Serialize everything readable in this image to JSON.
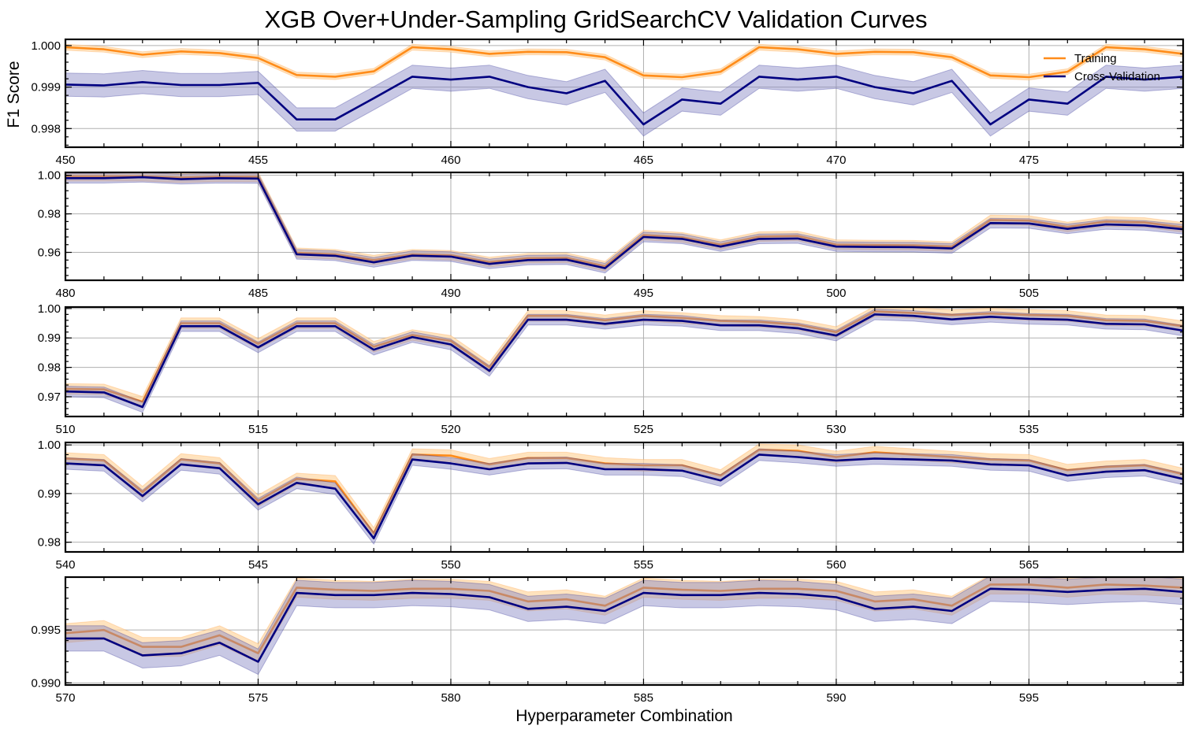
{
  "title": "XGB Over+Under-Sampling GridSearchCV Validation Curves",
  "ylabel": "F1 Score",
  "xlabel": "Hyperparameter Combination",
  "colors": {
    "training": "#ff8c1a",
    "training_band": "#ffd9a8",
    "cv": "#000080",
    "cv_band": "#8585c4",
    "grid": "#b0b0b0"
  },
  "legend": {
    "placement": "top-right",
    "entries": [
      "Training",
      "Cross-Validation"
    ]
  },
  "chart_data": [
    {
      "type": "line",
      "grid": true,
      "xlim": [
        450,
        479
      ],
      "ylim": [
        0.99755,
        1.00015
      ],
      "xticks": [
        450,
        455,
        460,
        465,
        470,
        475
      ],
      "yticks": [
        0.998,
        0.999,
        1.0
      ],
      "ytick_labels": [
        "0.998",
        "0.999",
        "1.000"
      ],
      "x": [
        450,
        451,
        452,
        453,
        454,
        455,
        456,
        457,
        458,
        459,
        460,
        461,
        462,
        463,
        464,
        465,
        466,
        467,
        468,
        469,
        470,
        471,
        472,
        473,
        474,
        475,
        476,
        477,
        478,
        479
      ],
      "series": [
        {
          "name": "Training",
          "values": [
            0.99996,
            0.99991,
            0.99978,
            0.99986,
            0.99982,
            0.9997,
            0.99929,
            0.99925,
            0.99938,
            0.99996,
            0.99991,
            0.9998,
            0.99985,
            0.99984,
            0.99972,
            0.99928,
            0.99924,
            0.99937,
            0.99996,
            0.99991,
            0.9998,
            0.99985,
            0.99984,
            0.99972,
            0.99928,
            0.99924,
            0.99937,
            0.99996,
            0.99991,
            0.9998
          ],
          "band": 7e-05
        },
        {
          "name": "Cross-Validation",
          "values": [
            0.99906,
            0.99904,
            0.99912,
            0.99905,
            0.99905,
            0.9991,
            0.99822,
            0.99822,
            0.99873,
            0.99925,
            0.99918,
            0.99925,
            0.999,
            0.99885,
            0.99915,
            0.9981,
            0.9987,
            0.9986,
            0.99925,
            0.99918,
            0.99925,
            0.999,
            0.99885,
            0.99915,
            0.9981,
            0.9987,
            0.9986,
            0.99925,
            0.99918,
            0.99925
          ],
          "band": 0.00028
        }
      ]
    },
    {
      "type": "line",
      "grid": true,
      "xlim": [
        480,
        509
      ],
      "ylim": [
        0.9455,
        1.0015
      ],
      "xticks": [
        480,
        485,
        490,
        495,
        500,
        505
      ],
      "yticks": [
        0.96,
        0.98,
        1.0
      ],
      "ytick_labels": [
        "0.96",
        "0.98",
        "1.00"
      ],
      "x": [
        480,
        481,
        482,
        483,
        484,
        485,
        486,
        487,
        488,
        489,
        490,
        491,
        492,
        493,
        494,
        495,
        496,
        497,
        498,
        499,
        500,
        501,
        502,
        503,
        504,
        505,
        506,
        507,
        508,
        509
      ],
      "series": [
        {
          "name": "Training",
          "values": [
            0.9995,
            0.9995,
            0.9995,
            0.9988,
            0.9993,
            0.9992,
            0.9598,
            0.959,
            0.956,
            0.959,
            0.9585,
            0.955,
            0.957,
            0.9572,
            0.9528,
            0.969,
            0.9678,
            0.964,
            0.9682,
            0.9685,
            0.964,
            0.9638,
            0.9637,
            0.963,
            0.9768,
            0.9765,
            0.9732,
            0.976,
            0.9755,
            0.973
          ],
          "band": 0.0025
        },
        {
          "name": "Cross-Validation",
          "values": [
            0.9985,
            0.9985,
            0.999,
            0.998,
            0.9985,
            0.9983,
            0.959,
            0.9582,
            0.9548,
            0.9583,
            0.9578,
            0.954,
            0.956,
            0.9562,
            0.9518,
            0.968,
            0.967,
            0.963,
            0.967,
            0.9672,
            0.963,
            0.9628,
            0.9627,
            0.962,
            0.9752,
            0.975,
            0.9722,
            0.9745,
            0.974,
            0.972
          ],
          "band": 0.0025
        }
      ]
    },
    {
      "type": "line",
      "grid": true,
      "xlim": [
        510,
        539
      ],
      "ylim": [
        0.9633,
        1.0005
      ],
      "xticks": [
        510,
        515,
        520,
        525,
        530,
        535
      ],
      "yticks": [
        0.97,
        0.98,
        0.99,
        1.0
      ],
      "ytick_labels": [
        "0.97",
        "0.98",
        "0.99",
        "1.00"
      ],
      "x": [
        510,
        511,
        512,
        513,
        514,
        515,
        516,
        517,
        518,
        519,
        520,
        521,
        522,
        523,
        524,
        525,
        526,
        527,
        528,
        529,
        530,
        531,
        532,
        533,
        534,
        535,
        536,
        537,
        538,
        539
      ],
      "series": [
        {
          "name": "Training",
          "values": [
            0.9727,
            0.9725,
            0.9683,
            0.995,
            0.995,
            0.988,
            0.995,
            0.995,
            0.987,
            0.991,
            0.989,
            0.98,
            0.9975,
            0.9975,
            0.996,
            0.9975,
            0.9968,
            0.9958,
            0.9955,
            0.9945,
            0.992,
            0.999,
            0.9985,
            0.9978,
            0.9983,
            0.9978,
            0.9975,
            0.996,
            0.9958,
            0.994
          ],
          "band": 0.0018
        },
        {
          "name": "Cross-Validation",
          "values": [
            0.9718,
            0.9715,
            0.9665,
            0.994,
            0.994,
            0.9868,
            0.994,
            0.994,
            0.986,
            0.9903,
            0.9878,
            0.9788,
            0.9962,
            0.9962,
            0.9948,
            0.9962,
            0.9958,
            0.9943,
            0.9943,
            0.9933,
            0.9908,
            0.998,
            0.9975,
            0.9963,
            0.9972,
            0.9965,
            0.9962,
            0.9948,
            0.9946,
            0.9925
          ],
          "band": 0.0018
        }
      ]
    },
    {
      "type": "line",
      "grid": true,
      "xlim": [
        540,
        569
      ],
      "ylim": [
        0.978,
        1.0005
      ],
      "xticks": [
        540,
        545,
        550,
        555,
        560,
        565
      ],
      "yticks": [
        0.98,
        0.99,
        1.0
      ],
      "ytick_labels": [
        "0.98",
        "0.99",
        "1.00"
      ],
      "x": [
        540,
        541,
        542,
        543,
        544,
        545,
        546,
        547,
        548,
        549,
        550,
        551,
        552,
        553,
        554,
        555,
        556,
        557,
        558,
        559,
        560,
        561,
        562,
        563,
        564,
        565,
        566,
        567,
        568,
        569
      ],
      "series": [
        {
          "name": "Training",
          "values": [
            0.9972,
            0.9968,
            0.9903,
            0.997,
            0.9962,
            0.9885,
            0.993,
            0.9925,
            0.9818,
            0.998,
            0.9978,
            0.996,
            0.9973,
            0.9973,
            0.9962,
            0.9958,
            0.9958,
            0.9937,
            0.999,
            0.9988,
            0.9975,
            0.9985,
            0.998,
            0.9975,
            0.997,
            0.9968,
            0.9948,
            0.9955,
            0.9958,
            0.994
          ],
          "band": 0.0012
        },
        {
          "name": "Cross-Validation",
          "values": [
            0.9962,
            0.9958,
            0.9895,
            0.996,
            0.9952,
            0.9878,
            0.9922,
            0.991,
            0.9808,
            0.997,
            0.9962,
            0.995,
            0.9962,
            0.9963,
            0.995,
            0.995,
            0.9947,
            0.9927,
            0.998,
            0.9975,
            0.9968,
            0.9972,
            0.997,
            0.9968,
            0.996,
            0.9958,
            0.9937,
            0.9945,
            0.9948,
            0.993
          ],
          "band": 0.0012
        }
      ]
    },
    {
      "type": "line",
      "grid": true,
      "xlim": [
        570,
        599
      ],
      "ylim": [
        0.9898,
        1.0
      ],
      "xticks": [
        570,
        575,
        580,
        585,
        590,
        595
      ],
      "yticks": [
        0.99,
        0.995
      ],
      "ytick_labels": [
        "0.990",
        "0.995"
      ],
      "x": [
        570,
        571,
        572,
        573,
        574,
        575,
        576,
        577,
        578,
        579,
        580,
        581,
        582,
        583,
        584,
        585,
        586,
        587,
        588,
        589,
        590,
        591,
        592,
        593,
        594,
        595,
        596,
        597,
        598,
        599
      ],
      "series": [
        {
          "name": "Training",
          "values": [
            0.9947,
            0.995,
            0.9934,
            0.9934,
            0.9945,
            0.9928,
            0.999,
            0.9988,
            0.9987,
            0.9989,
            0.9989,
            0.9987,
            0.9977,
            0.9979,
            0.9973,
            0.999,
            0.9988,
            0.9987,
            0.9989,
            0.9989,
            0.9987,
            0.9977,
            0.9979,
            0.9973,
            0.9993,
            0.9993,
            0.999,
            0.9993,
            0.9992,
            0.999
          ],
          "band": 0.0009
        },
        {
          "name": "Cross-Validation",
          "values": [
            0.9942,
            0.9942,
            0.9926,
            0.9928,
            0.9938,
            0.992,
            0.9985,
            0.9983,
            0.9983,
            0.9985,
            0.9984,
            0.9981,
            0.997,
            0.9972,
            0.9968,
            0.9985,
            0.9983,
            0.9983,
            0.9985,
            0.9984,
            0.9981,
            0.997,
            0.9972,
            0.9968,
            0.9989,
            0.9988,
            0.9986,
            0.9988,
            0.9989,
            0.9986
          ],
          "band": 0.0012
        }
      ]
    }
  ]
}
